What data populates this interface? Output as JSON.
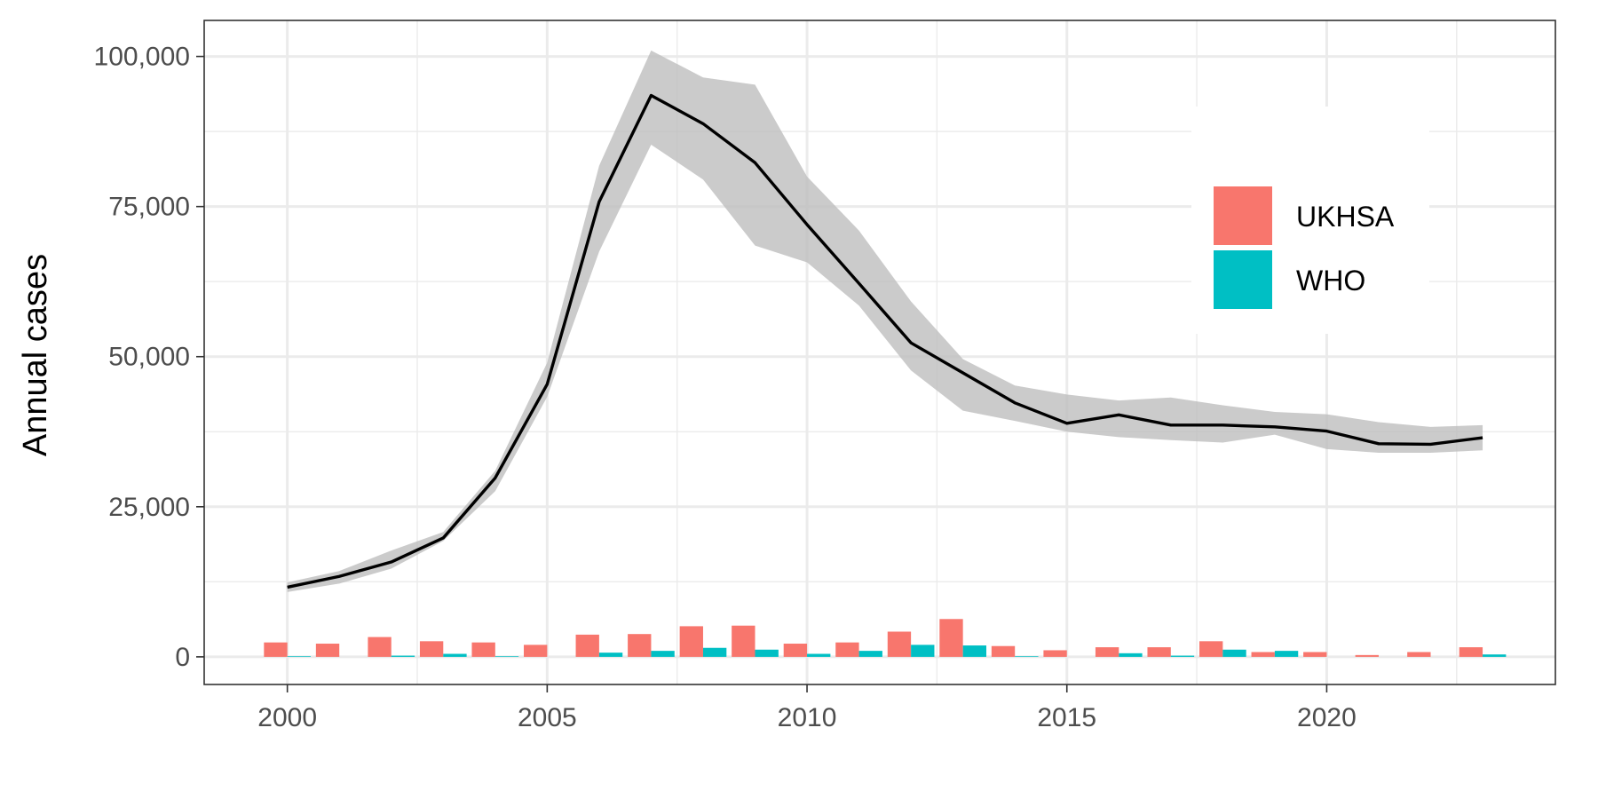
{
  "chart_data": {
    "type": "bar",
    "title": "",
    "xlabel": "",
    "ylabel": "Annual cases",
    "xlim": [
      1998.4,
      2024.4
    ],
    "ylim": [
      -4600,
      106000
    ],
    "x_ticks": [
      2000,
      2005,
      2010,
      2015,
      2020
    ],
    "x_tick_labels": [
      "2000",
      "2005",
      "2010",
      "2015",
      "2020"
    ],
    "y_ticks": [
      0,
      25000,
      50000,
      75000,
      100000
    ],
    "y_tick_labels": [
      "0",
      "25,000",
      "50,000",
      "75,000",
      "100,000"
    ],
    "grid": true,
    "legend_position": "top-right",
    "x": [
      2000,
      2001,
      2002,
      2003,
      2004,
      2005,
      2006,
      2007,
      2008,
      2009,
      2010,
      2011,
      2012,
      2013,
      2014,
      2015,
      2016,
      2017,
      2018,
      2019,
      2020,
      2021,
      2022,
      2023
    ],
    "series": [
      {
        "name": "UKHSA",
        "type": "bar",
        "color": "#F8766D",
        "values": [
          2400,
          2200,
          3300,
          2600,
          2400,
          2000,
          3700,
          3800,
          5100,
          5200,
          2200,
          2400,
          4200,
          6300,
          1800,
          1100,
          1600,
          1600,
          2600,
          800,
          800,
          300,
          800,
          1600
        ]
      },
      {
        "name": "WHO",
        "type": "bar",
        "color": "#00BFC4",
        "values": [
          100,
          0,
          200,
          500,
          100,
          0,
          700,
          1000,
          1500,
          1200,
          500,
          1000,
          2000,
          1900,
          100,
          0,
          600,
          200,
          1200,
          1000,
          0,
          0,
          0,
          400
        ]
      },
      {
        "type": "line",
        "color": "#000000",
        "values": [
          11600,
          13400,
          15800,
          19800,
          29800,
          45400,
          75800,
          93500,
          88800,
          82300,
          72000,
          62200,
          52300,
          47300,
          42300,
          38900,
          40300,
          38600,
          38600,
          38300,
          37600,
          35500,
          35400,
          36500
        ],
        "ribbon_lower": [
          10800,
          12200,
          14700,
          19300,
          27600,
          43300,
          67500,
          85300,
          79500,
          68500,
          65700,
          58500,
          47700,
          41000,
          39300,
          37500,
          36600,
          36100,
          35700,
          37000,
          34600,
          34000,
          34000,
          34400
        ],
        "ribbon_upper": [
          12400,
          14300,
          17700,
          20800,
          31000,
          49000,
          81800,
          101000,
          96500,
          95300,
          80000,
          71000,
          59200,
          49600,
          45200,
          43700,
          42700,
          43200,
          41900,
          40800,
          40400,
          39100,
          38300,
          38600
        ],
        "ribbon_color": "#bdbdbd"
      }
    ]
  }
}
